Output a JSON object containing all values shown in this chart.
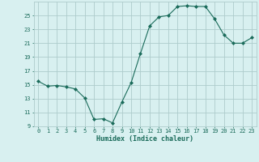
{
  "x": [
    0,
    1,
    2,
    3,
    4,
    5,
    6,
    7,
    8,
    9,
    10,
    11,
    12,
    13,
    14,
    15,
    16,
    17,
    18,
    19,
    20,
    21,
    22,
    23
  ],
  "y": [
    15.5,
    14.8,
    14.9,
    14.7,
    14.4,
    13.1,
    10.0,
    10.1,
    9.5,
    12.5,
    15.3,
    19.5,
    23.5,
    24.8,
    25.0,
    26.3,
    26.4,
    26.3,
    26.3,
    24.5,
    22.2,
    21.0,
    21.0,
    21.8
  ],
  "xlabel": "Humidex (Indice chaleur)",
  "ylim": [
    9,
    27
  ],
  "yticks": [
    9,
    11,
    13,
    15,
    17,
    19,
    21,
    23,
    25
  ],
  "xticks": [
    0,
    1,
    2,
    3,
    4,
    5,
    6,
    7,
    8,
    9,
    10,
    11,
    12,
    13,
    14,
    15,
    16,
    17,
    18,
    19,
    20,
    21,
    22,
    23
  ],
  "line_color": "#1a6b5a",
  "marker": "D",
  "marker_size": 2,
  "bg_color": "#d8f0f0",
  "grid_color": "#aecccc",
  "tick_color": "#1a6b5a",
  "label_color": "#1a6b5a",
  "tick_fontsize": 5.0,
  "xlabel_fontsize": 6.0
}
